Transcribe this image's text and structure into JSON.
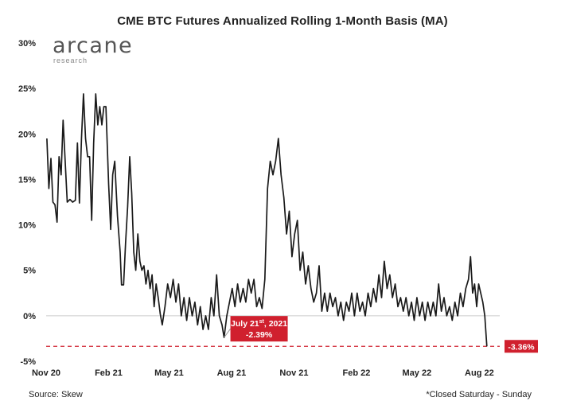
{
  "title": "CME BTC Futures Annualized Rolling 1-Month Basis (MA)",
  "logo": {
    "main": "arcane",
    "sub": "research"
  },
  "source": "Source: Skew",
  "note": "*Closed Saturday - Sunday",
  "colors": {
    "line": "#1a1a1a",
    "accent": "#d0202e",
    "zero_line": "#cccccc"
  },
  "chart_data": {
    "type": "line",
    "title": "CME BTC Futures Annualized Rolling 1-Month Basis (MA)",
    "xlabel": "",
    "ylabel": "",
    "y_ticks": [
      "30%",
      "25%",
      "20%",
      "15%",
      "10%",
      "5%",
      "0%",
      "-5%"
    ],
    "y_tick_values": [
      30,
      25,
      20,
      15,
      10,
      5,
      0,
      -5
    ],
    "x_ticks": [
      "Nov 20",
      "Feb 21",
      "May 21",
      "Aug 21",
      "Nov 21",
      "Feb 22",
      "May 22",
      "Aug 22"
    ],
    "x_tick_values": [
      "2020-11-01",
      "2021-02-01",
      "2021-05-01",
      "2021-08-01",
      "2021-11-01",
      "2022-02-01",
      "2022-05-01",
      "2022-08-01"
    ],
    "ylim": [
      -5,
      30
    ],
    "xlim": [
      "2020-11-01",
      "2022-08-31"
    ],
    "grid": false,
    "series": [
      {
        "name": "",
        "points": [
          [
            "2020-11-02",
            19.5
          ],
          [
            "2020-11-05",
            14.0
          ],
          [
            "2020-11-08",
            17.3
          ],
          [
            "2020-11-11",
            12.5
          ],
          [
            "2020-11-14",
            12.2
          ],
          [
            "2020-11-17",
            10.3
          ],
          [
            "2020-11-20",
            17.5
          ],
          [
            "2020-11-23",
            15.5
          ],
          [
            "2020-11-26",
            21.5
          ],
          [
            "2020-11-29",
            17.0
          ],
          [
            "2020-12-02",
            12.5
          ],
          [
            "2020-12-06",
            12.8
          ],
          [
            "2020-12-10",
            12.5
          ],
          [
            "2020-12-14",
            12.7
          ],
          [
            "2020-12-17",
            19.0
          ],
          [
            "2020-12-20",
            12.4
          ],
          [
            "2020-12-23",
            19.5
          ],
          [
            "2020-12-26",
            24.4
          ],
          [
            "2020-12-29",
            19.5
          ],
          [
            "2021-01-01",
            17.5
          ],
          [
            "2021-01-04",
            17.5
          ],
          [
            "2021-01-07",
            10.5
          ],
          [
            "2021-01-10",
            19.0
          ],
          [
            "2021-01-13",
            24.4
          ],
          [
            "2021-01-16",
            21.0
          ],
          [
            "2021-01-19",
            23.0
          ],
          [
            "2021-01-22",
            21.0
          ],
          [
            "2021-01-25",
            23.0
          ],
          [
            "2021-01-28",
            23.0
          ],
          [
            "2021-02-01",
            14.5
          ],
          [
            "2021-02-04",
            9.5
          ],
          [
            "2021-02-07",
            15.5
          ],
          [
            "2021-02-10",
            17.0
          ],
          [
            "2021-02-14",
            11.0
          ],
          [
            "2021-02-18",
            7.0
          ],
          [
            "2021-02-20",
            3.4
          ],
          [
            "2021-02-23",
            3.4
          ],
          [
            "2021-02-26",
            8.0
          ],
          [
            "2021-03-01",
            12.0
          ],
          [
            "2021-03-04",
            17.5
          ],
          [
            "2021-03-07",
            13.5
          ],
          [
            "2021-03-10",
            7.0
          ],
          [
            "2021-03-13",
            5.0
          ],
          [
            "2021-03-16",
            9.0
          ],
          [
            "2021-03-19",
            6.0
          ],
          [
            "2021-03-22",
            5.0
          ],
          [
            "2021-03-25",
            5.5
          ],
          [
            "2021-03-28",
            3.5
          ],
          [
            "2021-03-31",
            5.0
          ],
          [
            "2021-04-03",
            3.0
          ],
          [
            "2021-04-06",
            4.5
          ],
          [
            "2021-04-09",
            1.0
          ],
          [
            "2021-04-12",
            3.5
          ],
          [
            "2021-04-15",
            2.0
          ],
          [
            "2021-04-18",
            0.2
          ],
          [
            "2021-04-21",
            -1.0
          ],
          [
            "2021-04-25",
            1.0
          ],
          [
            "2021-04-29",
            3.5
          ],
          [
            "2021-05-03",
            2.0
          ],
          [
            "2021-05-07",
            4.0
          ],
          [
            "2021-05-11",
            1.5
          ],
          [
            "2021-05-15",
            3.5
          ],
          [
            "2021-05-19",
            0.0
          ],
          [
            "2021-05-23",
            2.0
          ],
          [
            "2021-05-27",
            -0.5
          ],
          [
            "2021-05-31",
            2.0
          ],
          [
            "2021-06-04",
            0.0
          ],
          [
            "2021-06-08",
            1.5
          ],
          [
            "2021-06-12",
            -1.0
          ],
          [
            "2021-06-16",
            1.0
          ],
          [
            "2021-06-20",
            -1.5
          ],
          [
            "2021-06-24",
            0.0
          ],
          [
            "2021-06-28",
            -1.5
          ],
          [
            "2021-07-02",
            2.0
          ],
          [
            "2021-07-06",
            0.0
          ],
          [
            "2021-07-10",
            4.5
          ],
          [
            "2021-07-14",
            0.0
          ],
          [
            "2021-07-18",
            -1.0
          ],
          [
            "2021-07-21",
            -2.39
          ],
          [
            "2021-07-25",
            0.0
          ],
          [
            "2021-07-29",
            1.5
          ],
          [
            "2021-08-02",
            3.0
          ],
          [
            "2021-08-06",
            1.0
          ],
          [
            "2021-08-10",
            3.5
          ],
          [
            "2021-08-14",
            1.5
          ],
          [
            "2021-08-18",
            3.0
          ],
          [
            "2021-08-22",
            1.5
          ],
          [
            "2021-08-26",
            4.0
          ],
          [
            "2021-08-30",
            2.5
          ],
          [
            "2021-09-03",
            4.0
          ],
          [
            "2021-09-07",
            1.0
          ],
          [
            "2021-09-11",
            2.0
          ],
          [
            "2021-09-15",
            0.8
          ],
          [
            "2021-09-19",
            4.0
          ],
          [
            "2021-09-23",
            14.0
          ],
          [
            "2021-09-27",
            17.0
          ],
          [
            "2021-10-01",
            15.5
          ],
          [
            "2021-10-05",
            17.0
          ],
          [
            "2021-10-09",
            19.5
          ],
          [
            "2021-10-13",
            15.5
          ],
          [
            "2021-10-17",
            13.0
          ],
          [
            "2021-10-21",
            9.0
          ],
          [
            "2021-10-25",
            11.5
          ],
          [
            "2021-10-29",
            6.5
          ],
          [
            "2021-11-02",
            9.0
          ],
          [
            "2021-11-06",
            10.5
          ],
          [
            "2021-11-10",
            5.0
          ],
          [
            "2021-11-14",
            7.0
          ],
          [
            "2021-11-18",
            3.5
          ],
          [
            "2021-11-22",
            5.5
          ],
          [
            "2021-11-26",
            3.0
          ],
          [
            "2021-11-30",
            1.5
          ],
          [
            "2021-12-04",
            2.5
          ],
          [
            "2021-12-08",
            5.5
          ],
          [
            "2021-12-12",
            0.5
          ],
          [
            "2021-12-16",
            2.5
          ],
          [
            "2021-12-20",
            0.5
          ],
          [
            "2021-12-24",
            2.5
          ],
          [
            "2021-12-28",
            1.0
          ],
          [
            "2022-01-01",
            2.0
          ],
          [
            "2022-01-05",
            0.0
          ],
          [
            "2022-01-09",
            1.5
          ],
          [
            "2022-01-13",
            -0.5
          ],
          [
            "2022-01-17",
            1.5
          ],
          [
            "2022-01-21",
            0.5
          ],
          [
            "2022-01-25",
            2.5
          ],
          [
            "2022-01-29",
            0.0
          ],
          [
            "2022-02-02",
            2.5
          ],
          [
            "2022-02-06",
            0.5
          ],
          [
            "2022-02-10",
            1.5
          ],
          [
            "2022-02-14",
            0.0
          ],
          [
            "2022-02-18",
            2.5
          ],
          [
            "2022-02-22",
            1.0
          ],
          [
            "2022-02-26",
            3.0
          ],
          [
            "2022-03-02",
            1.5
          ],
          [
            "2022-03-06",
            4.5
          ],
          [
            "2022-03-10",
            2.0
          ],
          [
            "2022-03-14",
            6.0
          ],
          [
            "2022-03-18",
            3.0
          ],
          [
            "2022-03-22",
            4.5
          ],
          [
            "2022-03-26",
            2.0
          ],
          [
            "2022-03-30",
            3.5
          ],
          [
            "2022-04-03",
            1.0
          ],
          [
            "2022-04-07",
            2.0
          ],
          [
            "2022-04-11",
            0.5
          ],
          [
            "2022-04-15",
            2.0
          ],
          [
            "2022-04-19",
            0.0
          ],
          [
            "2022-04-23",
            1.5
          ],
          [
            "2022-04-27",
            -0.5
          ],
          [
            "2022-05-01",
            2.0
          ],
          [
            "2022-05-05",
            0.0
          ],
          [
            "2022-05-09",
            1.5
          ],
          [
            "2022-05-13",
            -0.5
          ],
          [
            "2022-05-17",
            1.5
          ],
          [
            "2022-05-21",
            0.0
          ],
          [
            "2022-05-25",
            1.5
          ],
          [
            "2022-05-29",
            0.0
          ],
          [
            "2022-06-02",
            3.5
          ],
          [
            "2022-06-06",
            0.5
          ],
          [
            "2022-06-10",
            2.0
          ],
          [
            "2022-06-14",
            0.0
          ],
          [
            "2022-06-18",
            1.0
          ],
          [
            "2022-06-22",
            -0.5
          ],
          [
            "2022-06-26",
            1.5
          ],
          [
            "2022-06-30",
            0.0
          ],
          [
            "2022-07-04",
            2.5
          ],
          [
            "2022-07-08",
            1.0
          ],
          [
            "2022-07-12",
            3.0
          ],
          [
            "2022-07-16",
            4.0
          ],
          [
            "2022-07-19",
            6.5
          ],
          [
            "2022-07-22",
            2.5
          ],
          [
            "2022-07-25",
            3.5
          ],
          [
            "2022-07-28",
            1.0
          ],
          [
            "2022-07-31",
            3.5
          ],
          [
            "2022-08-03",
            2.5
          ],
          [
            "2022-08-06",
            1.5
          ],
          [
            "2022-08-09",
            0.0
          ],
          [
            "2022-08-12",
            -3.36
          ]
        ]
      }
    ],
    "annotations": [
      {
        "date": "2021-07-21",
        "value": -2.39,
        "label_line1": "July 21",
        "label_sup": "st",
        "label_line1_suffix": ", 2021",
        "label_line2": "-2.39%"
      },
      {
        "date": "2022-08-12",
        "value": -3.36,
        "label": "-3.36%"
      }
    ],
    "reference_line": {
      "value": -3.36,
      "style": "dashed"
    }
  }
}
